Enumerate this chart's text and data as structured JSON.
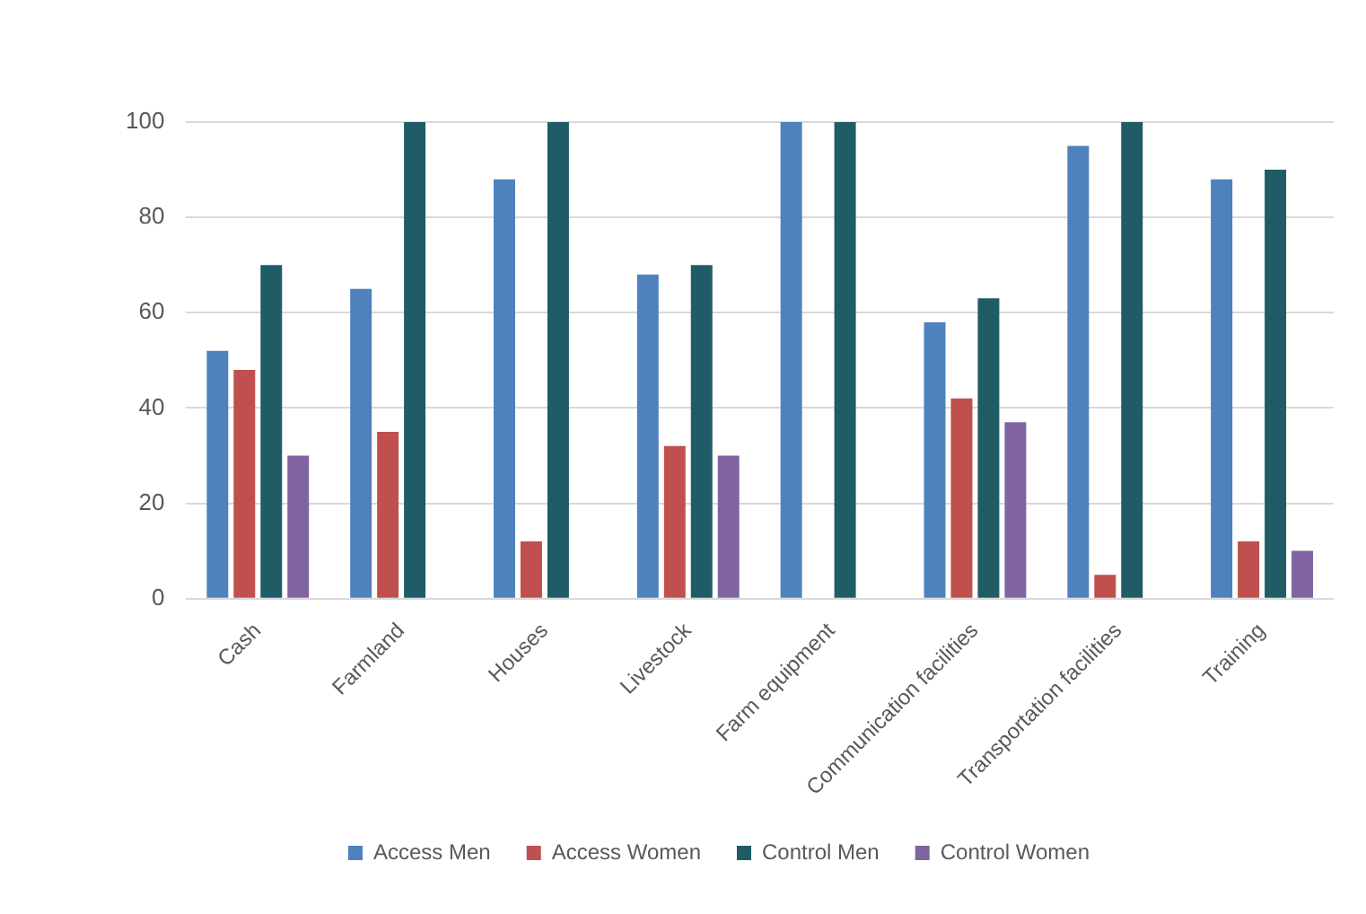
{
  "chart_data": {
    "type": "bar",
    "categories": [
      "Cash",
      "Farmland",
      "Houses",
      "Livestock",
      "Farm equipment",
      "Communication facilities",
      "Transportation facilities",
      "Training"
    ],
    "series": [
      {
        "name": "Access Men",
        "color": "#4f81bd",
        "values": [
          52,
          65,
          88,
          68,
          100,
          58,
          95,
          88
        ]
      },
      {
        "name": "Access Women",
        "color": "#c0504d",
        "values": [
          48,
          35,
          12,
          32,
          0,
          42,
          5,
          12
        ]
      },
      {
        "name": "Control Men",
        "color": "#1f5c66",
        "values": [
          70,
          100,
          100,
          70,
          100,
          63,
          100,
          90
        ]
      },
      {
        "name": "Control Women",
        "color": "#8064a2",
        "values": [
          30,
          0,
          0,
          30,
          0,
          37,
          0,
          10
        ]
      }
    ],
    "ylim": [
      0,
      100
    ],
    "yticks": [
      0,
      20,
      40,
      60,
      80,
      100
    ],
    "grid": "y",
    "legend": "bottom"
  }
}
